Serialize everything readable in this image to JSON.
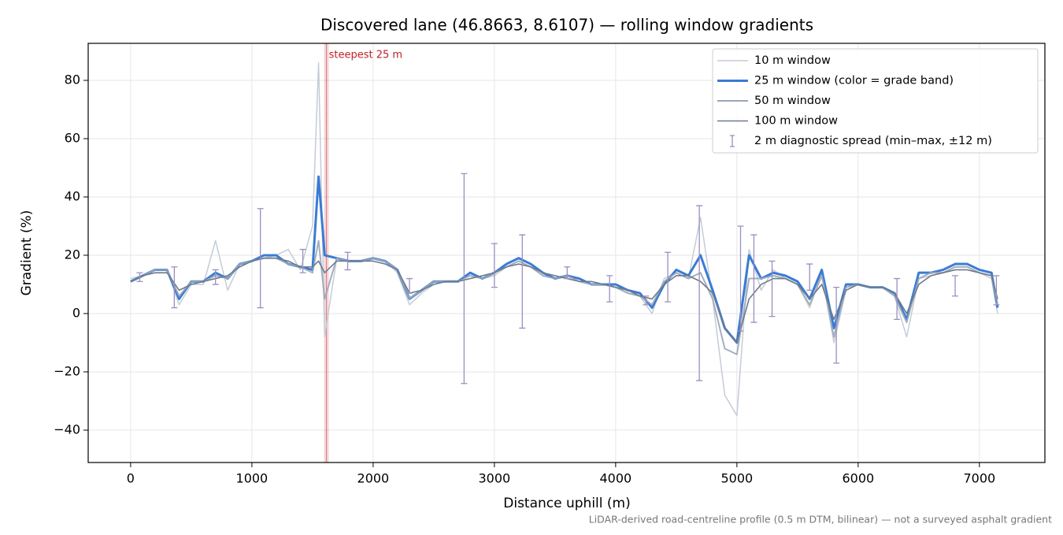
{
  "chart_data": {
    "type": "line",
    "title": "Discovered lane (46.8663, 8.6107) — rolling window gradients",
    "xlabel": "Distance uphill (m)",
    "ylabel": "Gradient (%)",
    "footnote": "LiDAR-derived road-centreline profile (0.5 m DTM, bilinear) — not a surveyed asphalt gradient",
    "x": [
      0,
      100,
      200,
      300,
      400,
      500,
      600,
      700,
      800,
      900,
      1000,
      1100,
      1200,
      1300,
      1400,
      1500,
      1550,
      1600,
      1700,
      1800,
      1900,
      2000,
      2100,
      2200,
      2300,
      2400,
      2500,
      2600,
      2700,
      2800,
      2900,
      3000,
      3100,
      3200,
      3300,
      3400,
      3500,
      3600,
      3700,
      3800,
      3900,
      4000,
      4100,
      4200,
      4300,
      4400,
      4500,
      4600,
      4700,
      4800,
      4900,
      5000,
      5100,
      5200,
      5300,
      5400,
      5500,
      5600,
      5700,
      5800,
      5900,
      6000,
      6100,
      6200,
      6300,
      6400,
      6500,
      6600,
      6700,
      6800,
      6900,
      7000,
      7100,
      7150
    ],
    "series": [
      {
        "name": "10 m window",
        "color": "#c4ccd7",
        "values": [
          12,
          13,
          15,
          15,
          3,
          10,
          10,
          25,
          8,
          17,
          18,
          19,
          20,
          22,
          15,
          30,
          86,
          -8,
          19,
          18,
          18,
          19,
          18,
          14,
          3,
          7,
          10,
          11,
          11,
          14,
          12,
          13,
          16,
          18,
          16,
          13,
          12,
          13,
          11,
          10,
          10,
          9,
          7,
          6,
          0,
          12,
          14,
          12,
          33,
          5,
          -28,
          -35,
          22,
          8,
          15,
          12,
          10,
          2,
          14,
          -10,
          8,
          10,
          9,
          9,
          6,
          -8,
          12,
          13,
          14,
          16,
          16,
          14,
          12,
          0
        ]
      },
      {
        "name": "25 m window (color = grade band)",
        "color": "#3a7bd5",
        "values": [
          11,
          13,
          15,
          15,
          5,
          11,
          11,
          14,
          12,
          17,
          18,
          20,
          20,
          17,
          16,
          15,
          47,
          20,
          19,
          18,
          18,
          19,
          18,
          15,
          5,
          8,
          11,
          11,
          11,
          14,
          12,
          14,
          17,
          19,
          17,
          14,
          12,
          13,
          12,
          10,
          10,
          10,
          8,
          7,
          2,
          10,
          15,
          13,
          20,
          8,
          -5,
          -10,
          20,
          12,
          14,
          13,
          11,
          5,
          15,
          -5,
          10,
          10,
          9,
          9,
          7,
          -2,
          14,
          14,
          15,
          17,
          17,
          15,
          14,
          2
        ]
      },
      {
        "name": "50 m window",
        "color": "#9aa7b8",
        "values": [
          11,
          13,
          15,
          15,
          6,
          11,
          11,
          13,
          12,
          17,
          18,
          19,
          19,
          17,
          16,
          14,
          25,
          5,
          19,
          18,
          18,
          19,
          18,
          15,
          5,
          8,
          11,
          11,
          11,
          13,
          12,
          14,
          16,
          18,
          16,
          13,
          12,
          13,
          11,
          10,
          10,
          9,
          7,
          6,
          3,
          11,
          14,
          12,
          14,
          5,
          -12,
          -14,
          12,
          12,
          13,
          12,
          10,
          3,
          13,
          -8,
          9,
          10,
          9,
          9,
          6,
          -3,
          12,
          14,
          14,
          16,
          16,
          14,
          13,
          3
        ]
      },
      {
        "name": "100 m window",
        "color": "#6e7b8b",
        "values": [
          11,
          13,
          14,
          14,
          8,
          10,
          11,
          12,
          13,
          16,
          18,
          19,
          19,
          18,
          16,
          16,
          18,
          14,
          18,
          18,
          18,
          18,
          17,
          15,
          7,
          8,
          10,
          11,
          11,
          12,
          13,
          14,
          16,
          17,
          16,
          14,
          13,
          12,
          11,
          11,
          10,
          9,
          8,
          6,
          5,
          10,
          13,
          13,
          11,
          7,
          -5,
          -10,
          5,
          10,
          12,
          12,
          10,
          5,
          10,
          -2,
          8,
          10,
          9,
          9,
          7,
          0,
          10,
          13,
          14,
          15,
          15,
          14,
          13,
          5
        ]
      }
    ],
    "spread": {
      "name": "2 m diagnostic spread (min–max, ±12 m)",
      "color": "#9a8fc0",
      "x": [
        75,
        360,
        700,
        1070,
        1420,
        1790,
        2300,
        2750,
        3000,
        3230,
        3600,
        3950,
        4250,
        4430,
        4690,
        5030,
        5140,
        5290,
        5600,
        5820,
        6320,
        6800,
        7140
      ],
      "low": [
        11,
        2,
        10,
        2,
        14,
        15,
        7,
        -24,
        9,
        -5,
        12,
        4,
        3,
        4,
        -23,
        -6,
        -3,
        -1,
        8,
        -17,
        -2,
        6,
        3
      ],
      "high": [
        14,
        16,
        15,
        36,
        22,
        21,
        12,
        48,
        24,
        27,
        16,
        13,
        6,
        21,
        37,
        30,
        27,
        18,
        17,
        9,
        12,
        13,
        13
      ]
    },
    "annotation": {
      "text": "steepest 25 m",
      "x": 1615,
      "color": "#c0202a"
    },
    "xlim": [
      -350,
      7540
    ],
    "ylim": [
      -51.1,
      92.7
    ],
    "xticks": [
      0,
      1000,
      2000,
      3000,
      4000,
      5000,
      6000,
      7000
    ],
    "yticks": [
      {
        "value": -40,
        "label": "−40"
      },
      {
        "value": -20,
        "label": "−20"
      },
      0,
      20,
      40,
      60,
      80
    ],
    "grid": true,
    "legend": "upper right"
  }
}
